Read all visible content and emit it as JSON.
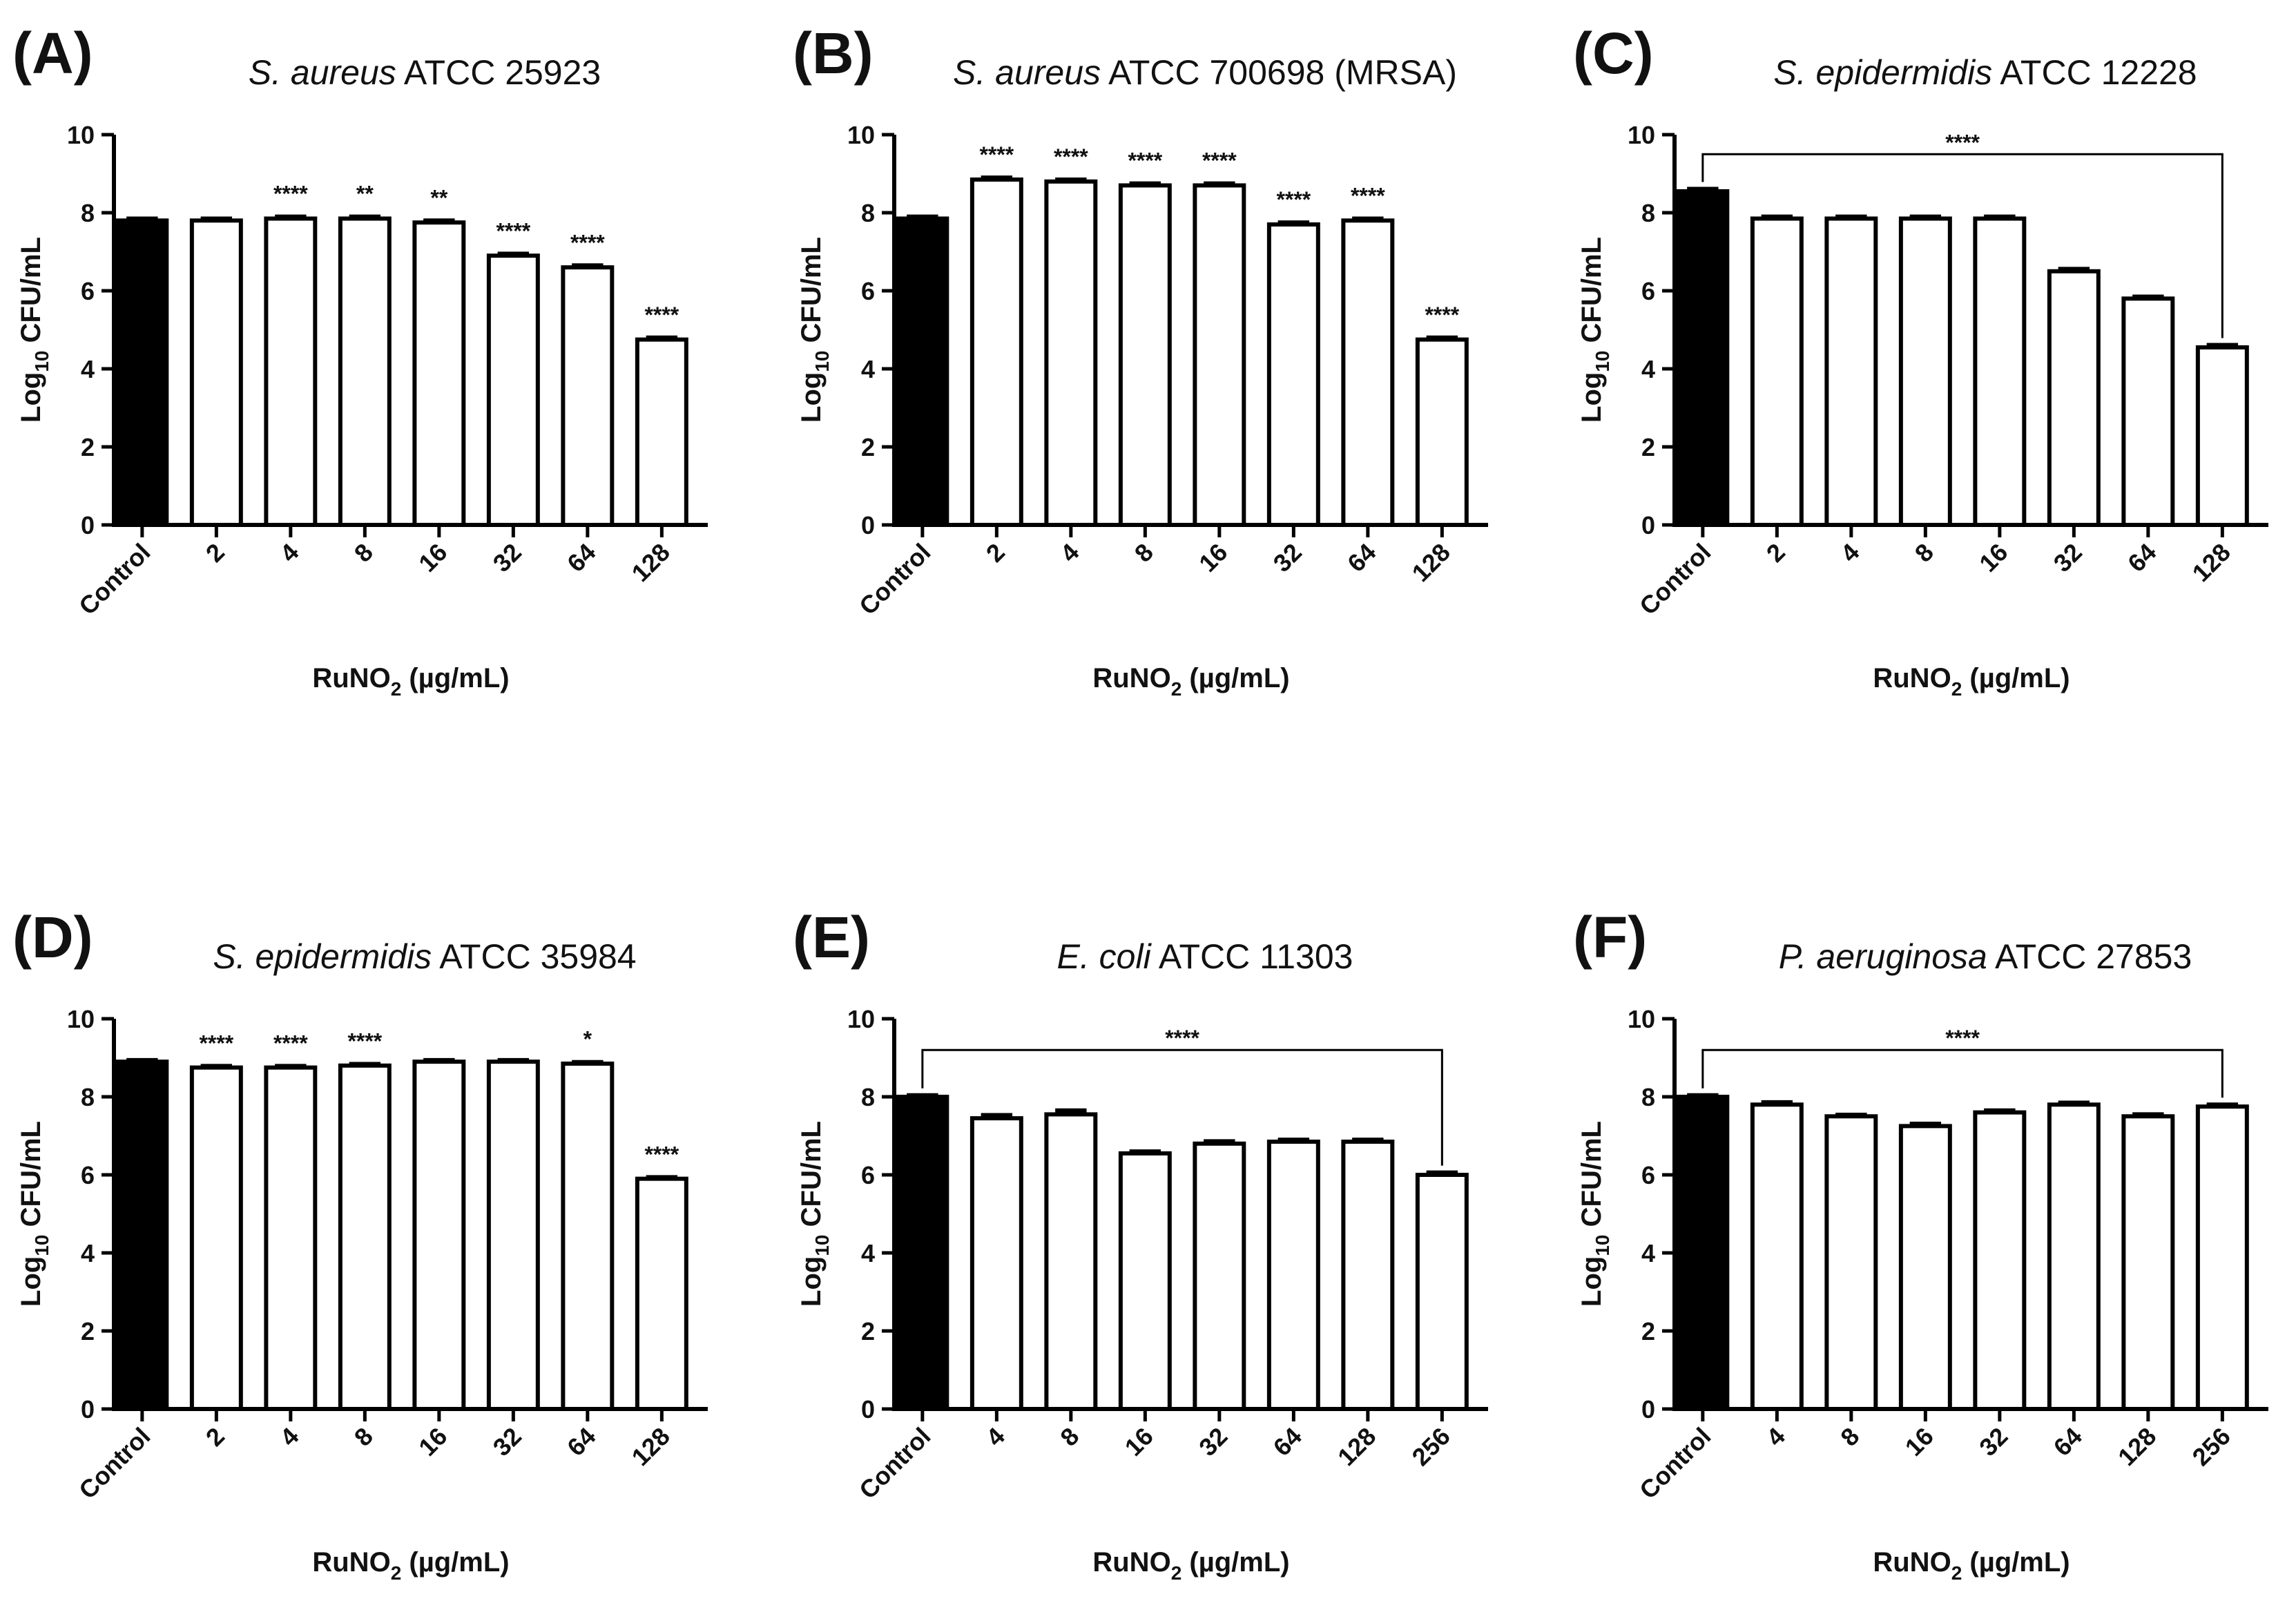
{
  "x_axis_label_main": "RuNO",
  "x_axis_label_sub": "2",
  "x_axis_label_units": " (µg/mL)",
  "y_axis_label_main": "Log",
  "y_axis_label_sub": "10",
  "y_axis_label_rest": " CFU/mL",
  "colors": {
    "control_fill": "#000000",
    "treated_fill": "#ffffff",
    "stroke": "#000000"
  },
  "chart_data": [
    {
      "type": "bar",
      "label": "(A)",
      "title_italic": "S. aureus",
      "title_rest": " ATCC 25923",
      "categories": [
        "Control",
        "2",
        "4",
        "8",
        "16",
        "32",
        "64",
        "128"
      ],
      "values": [
        7.8,
        7.8,
        7.85,
        7.85,
        7.75,
        6.9,
        6.6,
        4.75
      ],
      "errors": [
        0.05,
        0.05,
        0.05,
        0.05,
        0.05,
        0.05,
        0.05,
        0.05
      ],
      "significance": [
        "",
        "",
        "****",
        "**",
        "**",
        "****",
        "****",
        "****"
      ],
      "bracket": null,
      "ylim": [
        0,
        10
      ],
      "yticks": [
        0,
        2,
        4,
        6,
        8,
        10
      ]
    },
    {
      "type": "bar",
      "label": "(B)",
      "title_italic": "S. aureus",
      "title_rest": " ATCC 700698 (MRSA)",
      "categories": [
        "Control",
        "2",
        "4",
        "8",
        "16",
        "32",
        "64",
        "128"
      ],
      "values": [
        7.85,
        8.85,
        8.8,
        8.7,
        8.7,
        7.7,
        7.8,
        4.75
      ],
      "errors": [
        0.05,
        0.05,
        0.05,
        0.05,
        0.05,
        0.05,
        0.05,
        0.05
      ],
      "significance": [
        "",
        "****",
        "****",
        "****",
        "****",
        "****",
        "****",
        "****"
      ],
      "bracket": null,
      "ylim": [
        0,
        10
      ],
      "yticks": [
        0,
        2,
        4,
        6,
        8,
        10
      ]
    },
    {
      "type": "bar",
      "label": "(C)",
      "title_italic": "S. epidermidis",
      "title_rest": " ATCC 12228",
      "categories": [
        "Control",
        "2",
        "4",
        "8",
        "16",
        "32",
        "64",
        "128"
      ],
      "values": [
        8.55,
        7.85,
        7.85,
        7.85,
        7.85,
        6.5,
        5.8,
        4.55
      ],
      "errors": [
        0.06,
        0.05,
        0.05,
        0.05,
        0.05,
        0.06,
        0.05,
        0.06
      ],
      "significance": [
        "",
        "",
        "",
        "",
        "",
        "",
        "",
        ""
      ],
      "bracket": {
        "from": 0,
        "to": 7,
        "y": 9.5,
        "label": "****"
      },
      "ylim": [
        0,
        10
      ],
      "yticks": [
        0,
        2,
        4,
        6,
        8,
        10
      ]
    },
    {
      "type": "bar",
      "label": "(D)",
      "title_italic": "S. epidermidis",
      "title_rest": " ATCC 35984",
      "categories": [
        "Control",
        "2",
        "4",
        "8",
        "16",
        "32",
        "64",
        "128"
      ],
      "values": [
        8.9,
        8.75,
        8.75,
        8.8,
        8.9,
        8.9,
        8.85,
        5.9
      ],
      "errors": [
        0.04,
        0.04,
        0.04,
        0.04,
        0.04,
        0.04,
        0.04,
        0.04
      ],
      "significance": [
        "",
        "****",
        "****",
        "****",
        "",
        "",
        "*",
        "****"
      ],
      "bracket": null,
      "ylim": [
        0,
        10
      ],
      "yticks": [
        0,
        2,
        4,
        6,
        8,
        10
      ]
    },
    {
      "type": "bar",
      "label": "(E)",
      "title_italic": "E. coli",
      "title_rest": " ATCC 11303",
      "categories": [
        "Control",
        "4",
        "8",
        "16",
        "32",
        "64",
        "128",
        "256"
      ],
      "values": [
        8.0,
        7.45,
        7.55,
        6.55,
        6.8,
        6.85,
        6.85,
        6.0
      ],
      "errors": [
        0.04,
        0.08,
        0.1,
        0.05,
        0.06,
        0.05,
        0.05,
        0.06
      ],
      "significance": [
        "",
        "",
        "",
        "",
        "",
        "",
        "",
        ""
      ],
      "bracket": {
        "from": 0,
        "to": 7,
        "y": 9.2,
        "label": "****"
      },
      "ylim": [
        0,
        10
      ],
      "yticks": [
        0,
        2,
        4,
        6,
        8,
        10
      ]
    },
    {
      "type": "bar",
      "label": "(F)",
      "title_italic": "P. aeruginosa",
      "title_rest": " ATCC 27853",
      "categories": [
        "Control",
        "4",
        "8",
        "16",
        "32",
        "64",
        "128",
        "256"
      ],
      "values": [
        8.0,
        7.8,
        7.5,
        7.25,
        7.6,
        7.8,
        7.5,
        7.75
      ],
      "errors": [
        0.04,
        0.06,
        0.04,
        0.06,
        0.05,
        0.05,
        0.05,
        0.05
      ],
      "significance": [
        "",
        "",
        "",
        "",
        "",
        "",
        "",
        ""
      ],
      "bracket": {
        "from": 0,
        "to": 7,
        "y": 9.2,
        "label": "****"
      },
      "ylim": [
        0,
        10
      ],
      "yticks": [
        0,
        2,
        4,
        6,
        8,
        10
      ]
    }
  ]
}
